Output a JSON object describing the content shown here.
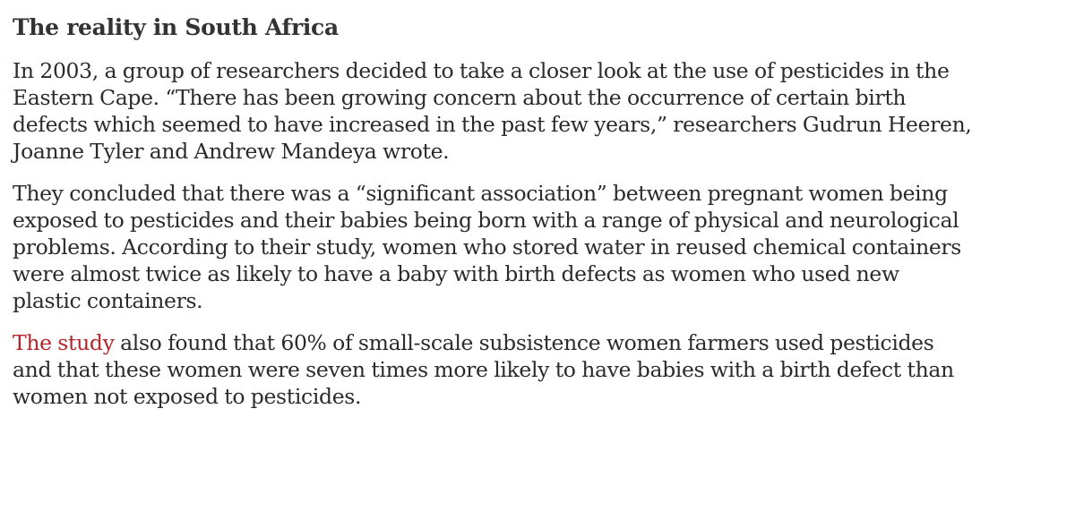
{
  "article": {
    "heading": "The reality in South Africa",
    "paragraphs": [
      {
        "lines": [
          "In 2003, a group of researchers decided to take a closer look at the use of pesticides in the",
          "Eastern Cape. “There has been growing concern about the occurrence of certain birth",
          "defects which seemed to have increased in the past few years,” researchers Gudrun Heeren,",
          "Joanne Tyler and Andrew Mandeya wrote."
        ]
      },
      {
        "lines": [
          "They concluded that there was a “significant association” between pregnant women being",
          "exposed to pesticides and their babies being born with a range of physical and neurological",
          "problems. According to their study, women who stored water in reused chemical containers",
          "were almost twice as likely to have a baby with birth defects as women who used new",
          "plastic containers."
        ]
      },
      {
        "link_text": "The study",
        "link_color": "#b3262b",
        "first_line_rest": " also found that 60% of small-scale subsistence women farmers used pesticides",
        "lines": [
          "and that these women were seven times more likely to have babies with a birth defect than",
          "women not exposed to pesticides."
        ]
      }
    ]
  }
}
